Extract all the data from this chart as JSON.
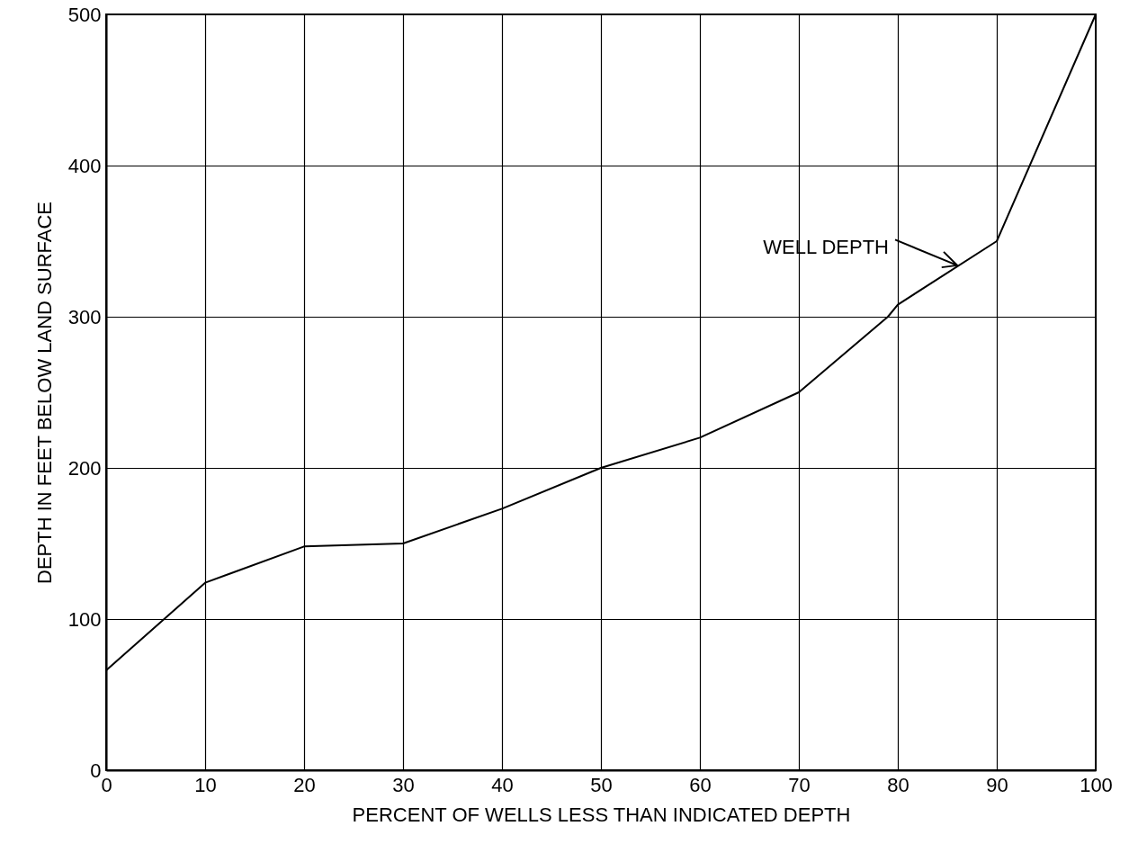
{
  "chart_data": {
    "type": "line",
    "xlabel": "PERCENT OF WELLS LESS THAN INDICATED DEPTH",
    "ylabel": "DEPTH IN FEET BELOW LAND SURFACE",
    "x": [
      0,
      10,
      20,
      30,
      40,
      50,
      60,
      70,
      79,
      80,
      90,
      100
    ],
    "series": [
      {
        "color": "#000000",
        "values": [
          66,
          124,
          148,
          150,
          173,
          200,
          220,
          250,
          300,
          308,
          350,
          500
        ]
      }
    ],
    "xlim": [
      0,
      100
    ],
    "xticks": [
      0,
      10,
      20,
      30,
      40,
      50,
      60,
      70,
      80,
      90,
      100
    ],
    "ylim": [
      0,
      500
    ],
    "yticks": [
      0,
      100,
      200,
      300,
      400,
      500
    ],
    "grid": true,
    "marker": "none",
    "line_style": "solid",
    "annotations": [
      {
        "text": "WELL DEPTH",
        "x": 86,
        "y": 334
      }
    ]
  }
}
